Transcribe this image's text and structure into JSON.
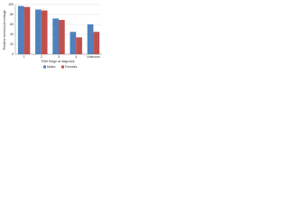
{
  "chart_data": {
    "type": "bar",
    "y_label": "Relative survival percentage",
    "x_label": "TNM Stage at diagnosis",
    "categories": [
      "1",
      "2",
      "3",
      "4",
      "Unknown"
    ],
    "series": [
      {
        "name": "Males",
        "color": "#4f81bd",
        "values": [
          97,
          90,
          72,
          45,
          60
        ]
      },
      {
        "name": "Females",
        "color": "#c0504d",
        "values": [
          95,
          88,
          69,
          34,
          45
        ]
      }
    ],
    "ylim": [
      0,
      100
    ],
    "yticks": [
      0,
      20,
      40,
      60,
      80,
      100
    ],
    "grid": true
  }
}
